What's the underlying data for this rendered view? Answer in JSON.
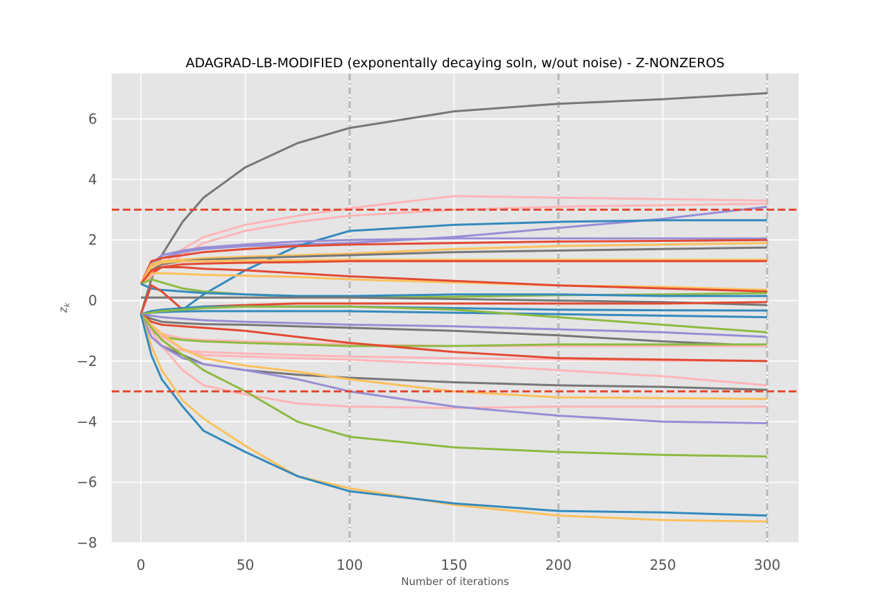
{
  "chart_data": {
    "type": "line",
    "title": "ADAGRAD-LB-MODIFIED (exponentally decaying soln, w/out noise) - Z-NONZEROS",
    "xlabel": "Number of iterations",
    "ylabel": "z_k",
    "xlim": [
      -14,
      315
    ],
    "ylim": [
      -8,
      7.5
    ],
    "xticks": [
      0,
      50,
      100,
      150,
      200,
      250,
      300
    ],
    "yticks": [
      -8,
      -6,
      -4,
      -2,
      0,
      2,
      4,
      6
    ],
    "grid": true,
    "background": "#e5e5e5",
    "threshold_lines": {
      "values": [
        3,
        -3
      ],
      "color": "#e24a33",
      "style": "dashed"
    },
    "vertical_markers": {
      "values": [
        100,
        200,
        300
      ],
      "color": "#b8b8b8",
      "style": "dashdot"
    },
    "x": [
      0,
      5,
      10,
      20,
      30,
      50,
      75,
      100,
      150,
      200,
      250,
      300
    ],
    "series": [
      {
        "color": "#777777",
        "values": [
          -0.45,
          0.7,
          1.5,
          2.6,
          3.4,
          4.4,
          5.2,
          5.7,
          6.25,
          6.5,
          6.65,
          6.85
        ]
      },
      {
        "color": "#ffb5b8",
        "values": [
          0.55,
          0.9,
          1.2,
          1.7,
          2.1,
          2.5,
          2.8,
          3.05,
          3.45,
          3.4,
          3.35,
          3.3
        ]
      },
      {
        "color": "#ffb5b8",
        "values": [
          0.55,
          0.8,
          1.1,
          1.5,
          1.9,
          2.3,
          2.6,
          2.8,
          3.0,
          3.1,
          3.15,
          3.2
        ]
      },
      {
        "color": "#988ed5",
        "values": [
          0.55,
          1.1,
          1.4,
          1.6,
          1.7,
          1.8,
          1.85,
          1.9,
          2.1,
          2.4,
          2.7,
          3.1
        ]
      },
      {
        "color": "#348abd",
        "values": [
          -0.45,
          -0.4,
          -0.35,
          -0.3,
          0.2,
          1.0,
          1.8,
          2.3,
          2.5,
          2.6,
          2.65,
          2.65
        ]
      },
      {
        "color": "#988ed5",
        "values": [
          0.55,
          1.2,
          1.5,
          1.65,
          1.75,
          1.85,
          1.95,
          2.0,
          2.05,
          2.05,
          2.05,
          2.05
        ]
      },
      {
        "color": "#e24a33",
        "values": [
          0.55,
          1.3,
          1.4,
          1.5,
          1.6,
          1.7,
          1.8,
          1.85,
          1.9,
          1.95,
          1.97,
          2.0
        ]
      },
      {
        "color": "#fbc15e",
        "values": [
          0.55,
          1.2,
          1.3,
          1.35,
          1.4,
          1.45,
          1.5,
          1.55,
          1.7,
          1.8,
          1.85,
          1.9
        ]
      },
      {
        "color": "#777777",
        "values": [
          0.55,
          1.0,
          1.2,
          1.3,
          1.35,
          1.4,
          1.45,
          1.5,
          1.6,
          1.65,
          1.7,
          1.75
        ]
      },
      {
        "color": "#fbc15e",
        "values": [
          0.55,
          1.1,
          1.25,
          1.3,
          1.3,
          1.32,
          1.33,
          1.35,
          1.35,
          1.35,
          1.35,
          1.35
        ]
      },
      {
        "color": "#e24a33",
        "values": [
          0.55,
          0.9,
          1.1,
          1.2,
          1.22,
          1.25,
          1.27,
          1.3,
          1.3,
          1.3,
          1.3,
          1.3
        ]
      },
      {
        "color": "#fbc15e",
        "values": [
          0.55,
          0.9,
          0.9,
          0.88,
          0.85,
          0.82,
          0.78,
          0.7,
          0.6,
          0.5,
          0.45,
          0.35
        ]
      },
      {
        "color": "#e24a33",
        "values": [
          0.55,
          1.0,
          1.1,
          1.1,
          1.05,
          1.0,
          0.9,
          0.8,
          0.65,
          0.5,
          0.4,
          0.3
        ]
      },
      {
        "color": "#8eba42",
        "values": [
          0.55,
          0.7,
          0.6,
          0.4,
          0.3,
          0.2,
          0.15,
          0.1,
          0.12,
          0.18,
          0.2,
          0.25
        ]
      },
      {
        "color": "#348abd",
        "values": [
          0.55,
          0.4,
          0.35,
          0.3,
          0.25,
          0.2,
          0.15,
          0.15,
          0.2,
          0.2,
          0.15,
          0.15
        ]
      },
      {
        "color": "#777777",
        "values": [
          0.1,
          0.1,
          0.1,
          0.1,
          0.1,
          0.1,
          0.1,
          0.1,
          0.05,
          0.0,
          -0.05,
          -0.15
        ]
      },
      {
        "color": "#e24a33",
        "values": [
          -0.45,
          0.5,
          0.3,
          -0.3,
          -0.2,
          -0.15,
          -0.1,
          -0.1,
          -0.1,
          -0.1,
          -0.1,
          -0.05
        ]
      },
      {
        "color": "#348abd",
        "values": [
          -0.45,
          -0.4,
          -0.38,
          -0.36,
          -0.35,
          -0.35,
          -0.35,
          -0.35,
          -0.4,
          -0.45,
          -0.5,
          -0.55
        ]
      },
      {
        "color": "#348abd",
        "values": [
          -0.45,
          -0.35,
          -0.3,
          -0.25,
          -0.2,
          -0.2,
          -0.2,
          -0.2,
          -0.25,
          -0.3,
          -0.32,
          -0.33
        ]
      },
      {
        "color": "#8eba42",
        "values": [
          -0.45,
          -0.4,
          -0.35,
          -0.3,
          -0.25,
          -0.2,
          -0.2,
          -0.2,
          -0.3,
          -0.55,
          -0.8,
          -1.05
        ]
      },
      {
        "color": "#988ed5",
        "values": [
          -0.45,
          -0.5,
          -0.55,
          -0.6,
          -0.65,
          -0.7,
          -0.75,
          -0.8,
          -0.85,
          -0.95,
          -1.05,
          -1.2
        ]
      },
      {
        "color": "#777777",
        "values": [
          -0.45,
          -0.6,
          -0.7,
          -0.75,
          -0.78,
          -0.8,
          -0.85,
          -0.9,
          -1.0,
          -1.15,
          -1.35,
          -1.5
        ]
      },
      {
        "color": "#ffb5b8",
        "values": [
          -0.45,
          -0.9,
          -1.1,
          -1.25,
          -1.3,
          -1.35,
          -1.4,
          -1.45,
          -1.5,
          -1.5,
          -1.5,
          -1.5
        ]
      },
      {
        "color": "#8eba42",
        "values": [
          -0.45,
          -1.0,
          -1.2,
          -1.3,
          -1.35,
          -1.4,
          -1.45,
          -1.5,
          -1.5,
          -1.45,
          -1.45,
          -1.45
        ]
      },
      {
        "color": "#ffb5b8",
        "values": [
          -0.45,
          -1.2,
          -1.5,
          -1.65,
          -1.7,
          -1.75,
          -1.8,
          -1.85,
          -1.9,
          -1.95,
          -1.98,
          -2.0
        ]
      },
      {
        "color": "#e24a33",
        "values": [
          -0.45,
          -0.7,
          -0.8,
          -0.85,
          -0.9,
          -1.0,
          -1.2,
          -1.4,
          -1.7,
          -1.9,
          -1.95,
          -2.0
        ]
      },
      {
        "color": "#ffb5b8",
        "values": [
          -0.45,
          -0.9,
          -1.2,
          -1.6,
          -1.8,
          -1.85,
          -1.9,
          -1.95,
          -2.1,
          -2.3,
          -2.5,
          -2.8
        ]
      },
      {
        "color": "#777777",
        "values": [
          -0.45,
          -1.2,
          -1.5,
          -1.8,
          -2.1,
          -2.3,
          -2.45,
          -2.55,
          -2.7,
          -2.8,
          -2.85,
          -2.95
        ]
      },
      {
        "color": "#fbc15e",
        "values": [
          -0.45,
          -0.8,
          -1.1,
          -1.6,
          -1.9,
          -2.15,
          -2.35,
          -2.6,
          -3.0,
          -3.2,
          -3.22,
          -3.25
        ]
      },
      {
        "color": "#ffb5b8",
        "values": [
          -0.45,
          -1.0,
          -1.5,
          -2.3,
          -2.8,
          -3.1,
          -3.4,
          -3.5,
          -3.55,
          -3.5,
          -3.5,
          -3.5
        ]
      },
      {
        "color": "#988ed5",
        "values": [
          -0.45,
          -1.2,
          -1.5,
          -1.9,
          -2.1,
          -2.3,
          -2.6,
          -3.0,
          -3.5,
          -3.8,
          -4.0,
          -4.05
        ]
      },
      {
        "color": "#8eba42",
        "values": [
          -0.45,
          -0.9,
          -1.3,
          -1.8,
          -2.3,
          -3.0,
          -4.0,
          -4.5,
          -4.85,
          -5.0,
          -5.1,
          -5.15
        ]
      },
      {
        "color": "#fbc15e",
        "values": [
          -0.45,
          -1.5,
          -2.3,
          -3.3,
          -3.9,
          -4.8,
          -5.8,
          -6.2,
          -6.75,
          -7.1,
          -7.25,
          -7.3
        ]
      },
      {
        "color": "#348abd",
        "values": [
          -0.45,
          -1.8,
          -2.6,
          -3.5,
          -4.3,
          -5.0,
          -5.8,
          -6.3,
          -6.7,
          -6.95,
          -7.0,
          -7.1
        ]
      }
    ]
  }
}
